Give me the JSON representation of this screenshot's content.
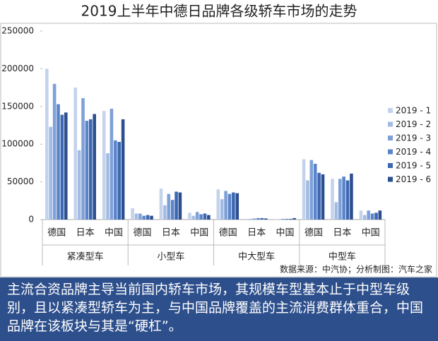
{
  "chart_data": {
    "type": "bar",
    "title": "2019上半年中德日品牌各级轿车市场的走势",
    "category_groups": [
      {
        "name": "紧凑型车",
        "categories": [
          "德国",
          "日本",
          "中国"
        ]
      },
      {
        "name": "小型车",
        "categories": [
          "德国",
          "日本",
          "中国"
        ]
      },
      {
        "name": "中大型车",
        "categories": [
          "德国",
          "日本",
          "中国"
        ]
      },
      {
        "name": "中型车",
        "categories": [
          "德国",
          "日本",
          "中国"
        ]
      }
    ],
    "series": [
      {
        "name": "2019 - 1",
        "color": "#c3d3ec",
        "values": [
          200000,
          175000,
          144000,
          15000,
          41000,
          9000,
          40000,
          1000,
          500,
          80000,
          54000,
          12000
        ]
      },
      {
        "name": "2019 - 2",
        "color": "#a3bbe3",
        "values": [
          123000,
          92000,
          88000,
          8000,
          19000,
          5000,
          27000,
          1000,
          500,
          52000,
          23000,
          6000
        ]
      },
      {
        "name": "2019 - 3",
        "color": "#7ea0d8",
        "values": [
          180000,
          161000,
          147000,
          8000,
          34000,
          10000,
          38000,
          1500,
          1000,
          79000,
          54000,
          12000
        ]
      },
      {
        "name": "2019 - 4",
        "color": "#5b84c8",
        "values": [
          153000,
          131000,
          105000,
          5000,
          26000,
          7000,
          34000,
          2000,
          1000,
          74000,
          57000,
          8000
        ]
      },
      {
        "name": "2019 - 5",
        "color": "#3c67b3",
        "values": [
          139000,
          133000,
          103000,
          6000,
          37000,
          8000,
          36000,
          2000,
          1000,
          62000,
          52000,
          9000
        ]
      },
      {
        "name": "2019 - 6",
        "color": "#2c4f8f",
        "values": [
          142000,
          140000,
          133000,
          5000,
          36000,
          6000,
          35000,
          1500,
          2000,
          60000,
          61000,
          12000
        ]
      }
    ],
    "ylim": [
      0,
      250000
    ],
    "yticks": [
      0,
      50000,
      100000,
      150000,
      200000,
      250000
    ],
    "grid": false,
    "legend": "right",
    "source": "数据来源：中汽协；分析制图：汽车之家"
  },
  "caption": "主流合资品牌主导当前国内轿车市场，其规模车型基本止于中型车级别，且以紧凑型轿车为主，与中国品牌覆盖的主流消费群体重合，中国品牌在该板块与其是“硬杠”。"
}
